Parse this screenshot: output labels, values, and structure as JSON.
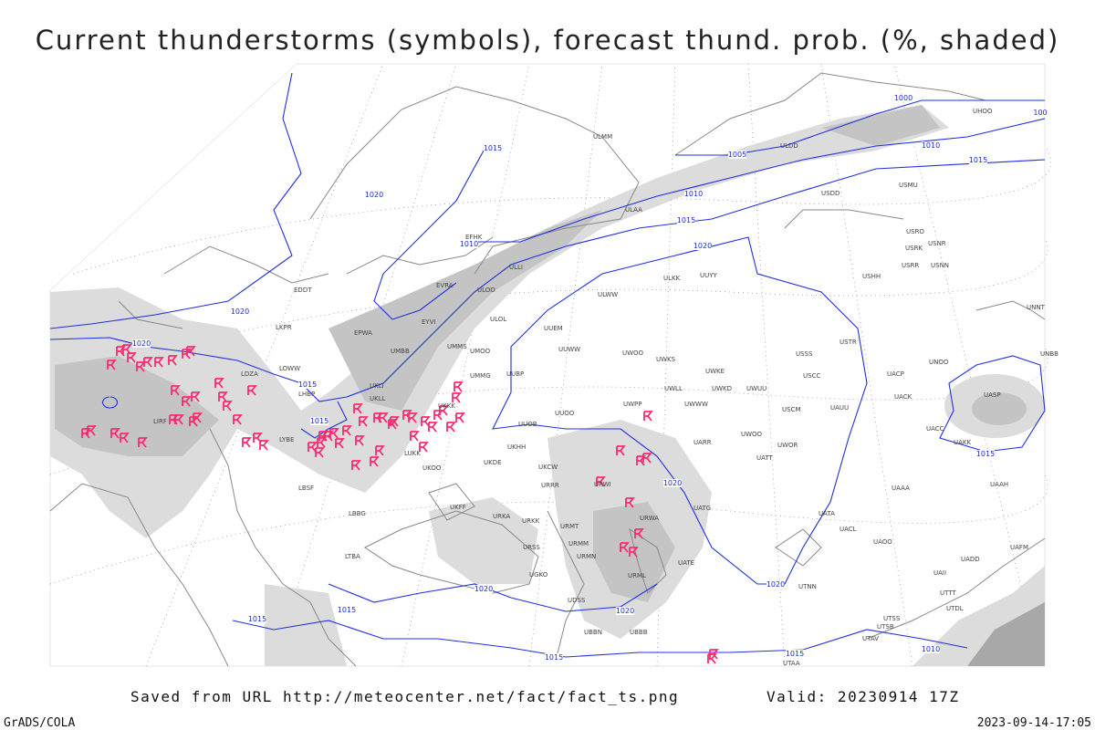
{
  "header": {
    "title": "Current thunderstorms (symbols), forecast thund. prob. (%, shaded)"
  },
  "footer": {
    "source": "Saved from URL http://meteocenter.net/fact/fact_ts.png",
    "valid": "Valid: 20230914 17Z",
    "credit": "GrADS/COLA",
    "timestamp": "2023-09-14-17:05"
  },
  "isobars": [
    "1000",
    "1005",
    "1010",
    "1015",
    "1010",
    "1015",
    "1020",
    "1015",
    "1020",
    "1010",
    "1020",
    "1020",
    "1015",
    "1015",
    "1020",
    "1015",
    "1020",
    "1020",
    "1020",
    "1015",
    "1015",
    "1015",
    "1015",
    "1010",
    "100"
  ],
  "stations": [
    "ULMM",
    "ULAA",
    "ULLI",
    "ULOO",
    "ULOL",
    "ULWW",
    "ULKK",
    "UUYY",
    "UUEM",
    "UUWW",
    "UMMS",
    "UMOO",
    "UMMG",
    "UUBP",
    "UMBB",
    "EVRA",
    "EYVI",
    "EPWA",
    "EDDT",
    "LKPR",
    "LOWW",
    "LHBP",
    "UKLL",
    "UKLI",
    "LUKK",
    "UKOO",
    "UKDE",
    "UKKK",
    "UKHH",
    "UUOB",
    "UUOO",
    "UWPP",
    "UWOO",
    "UWKS",
    "UWKE",
    "UWKD",
    "UWUU",
    "UWWW",
    "UWLL",
    "USSS",
    "USCC",
    "USCM",
    "UAUU",
    "UWOO",
    "UWOR",
    "UATT",
    "UARR",
    "USTR",
    "USHH",
    "USRR",
    "USNN",
    "USRK",
    "USRO",
    "USNR",
    "USMU",
    "USDD",
    "ULDD",
    "UACP",
    "UACK",
    "UAAA",
    "UACC",
    "UAKK",
    "UAOO",
    "UATG",
    "UATE",
    "UATA",
    "UACL",
    "UASP",
    "UNNT",
    "UNBB",
    "UNOO",
    "UAAH",
    "UAFM",
    "UADD",
    "UAII",
    "UTTT",
    "UTSS",
    "UTSB",
    "UTAV",
    "UTDL",
    "UTAA",
    "UTNN",
    "URRR",
    "URKK",
    "URWI",
    "URWA",
    "URMT",
    "URMM",
    "URMN",
    "URML",
    "UGKO",
    "URSS",
    "UBBB",
    "UDSS",
    "UBBN",
    "LTBA",
    "LBSF",
    "LBBG",
    "LYBE",
    "UKFF",
    "URKA",
    "LIRF",
    "UKCW",
    "EFHK",
    "UHOO",
    "LDZA"
  ]
}
